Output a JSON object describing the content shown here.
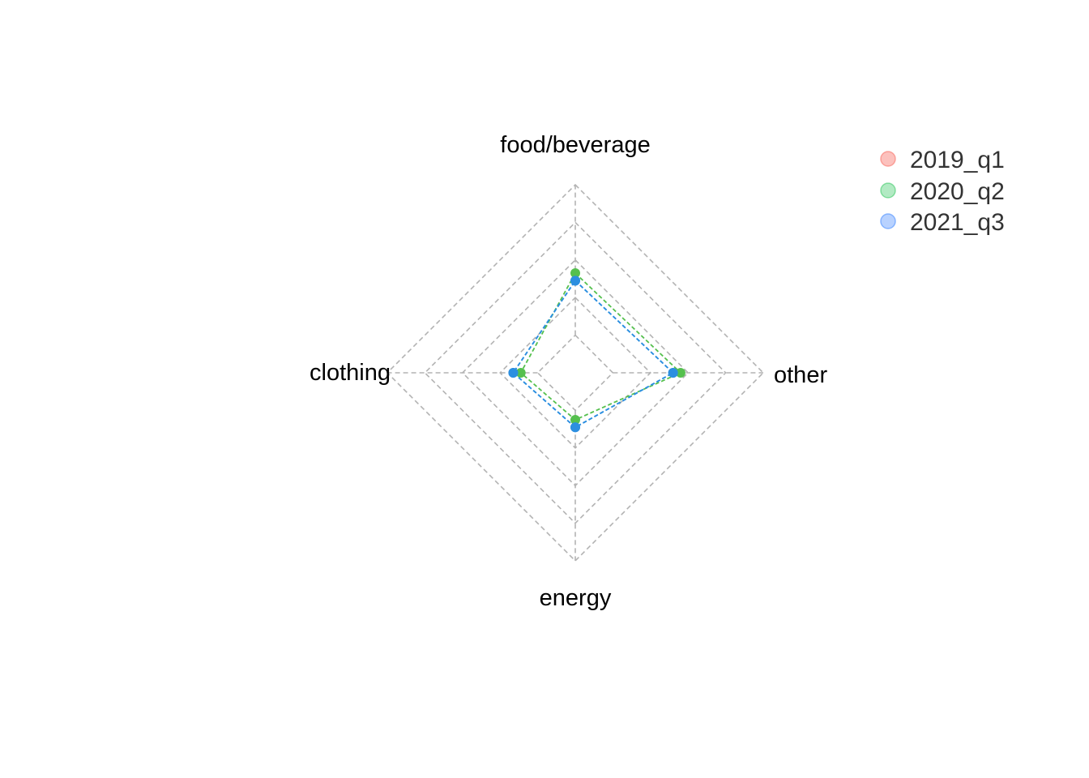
{
  "chart_data": {
    "type": "radar",
    "title": "",
    "axes": [
      "food/beverage",
      "other",
      "energy",
      "clothing"
    ],
    "rmax": 1.0,
    "grid_levels": [
      0.2,
      0.4,
      0.6,
      0.8,
      1.0
    ],
    "grid": true,
    "legend_position": "top-right",
    "series": [
      {
        "name": "2019_q1",
        "legend_color": "#F8766D",
        "color": "#2C8FE0",
        "values": [
          0.49,
          0.52,
          0.29,
          0.33
        ]
      },
      {
        "name": "2020_q2",
        "legend_color": "#00BA38",
        "color": "#55C04E",
        "values": [
          0.53,
          0.56,
          0.25,
          0.29
        ]
      },
      {
        "name": "2021_q3",
        "legend_color": "#619CFF",
        "color": "#2C8FE0",
        "values": [
          0.49,
          0.52,
          0.29,
          0.33
        ]
      }
    ]
  }
}
